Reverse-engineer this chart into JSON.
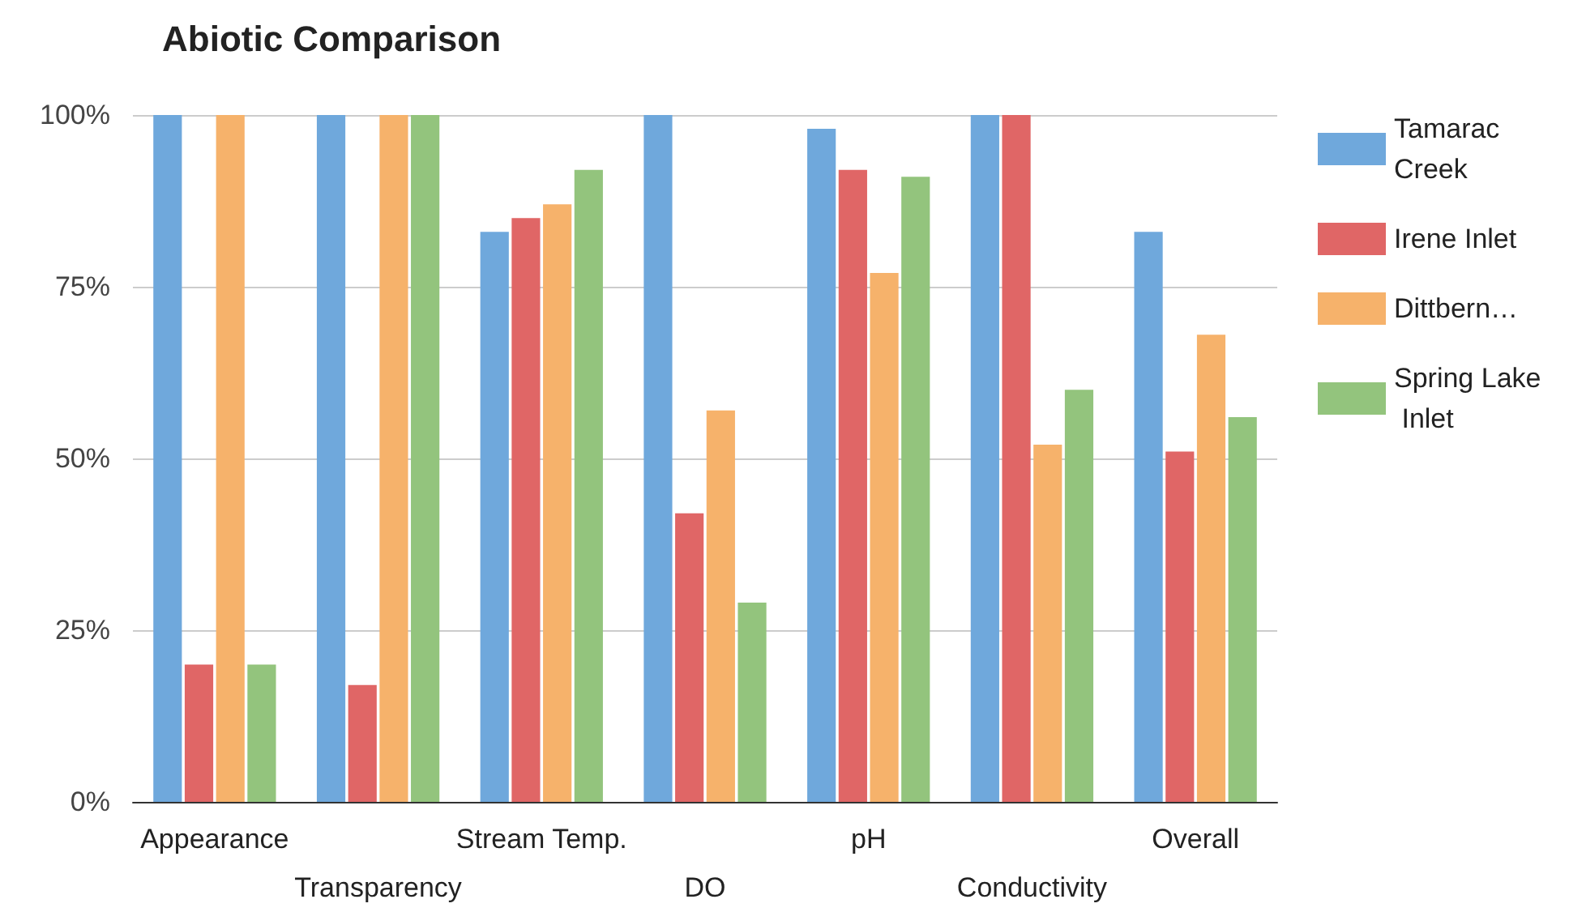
{
  "chart_data": {
    "type": "bar",
    "title": "Abiotic Comparison",
    "categories": [
      "Appearance",
      "Transparency",
      "Stream Temp.",
      "DO",
      "pH",
      "Conductivity",
      "Overall"
    ],
    "series": [
      {
        "name": "Tamarac Creek",
        "color": "#6fa8dc",
        "values": [
          100,
          100,
          83,
          100,
          98,
          100,
          83
        ]
      },
      {
        "name": "Irene Inlet",
        "color": "#e06666",
        "values": [
          20,
          17,
          85,
          42,
          92,
          100,
          51
        ]
      },
      {
        "name": "Dittbern…",
        "color": "#f6b26b",
        "values": [
          100,
          100,
          87,
          57,
          77,
          52,
          68
        ]
      },
      {
        "name": "Spring Lake Inlet",
        "color": "#93c47d",
        "values": [
          20,
          100,
          92,
          29,
          91,
          60,
          56
        ]
      }
    ],
    "ylim": [
      0,
      100
    ],
    "yticks": [
      {
        "value": 0,
        "label": "0%"
      },
      {
        "value": 25,
        "label": "25%"
      },
      {
        "value": 50,
        "label": "50%"
      },
      {
        "value": 75,
        "label": "75%"
      },
      {
        "value": 100,
        "label": "100%"
      }
    ],
    "grid": "y",
    "legend": "right"
  }
}
